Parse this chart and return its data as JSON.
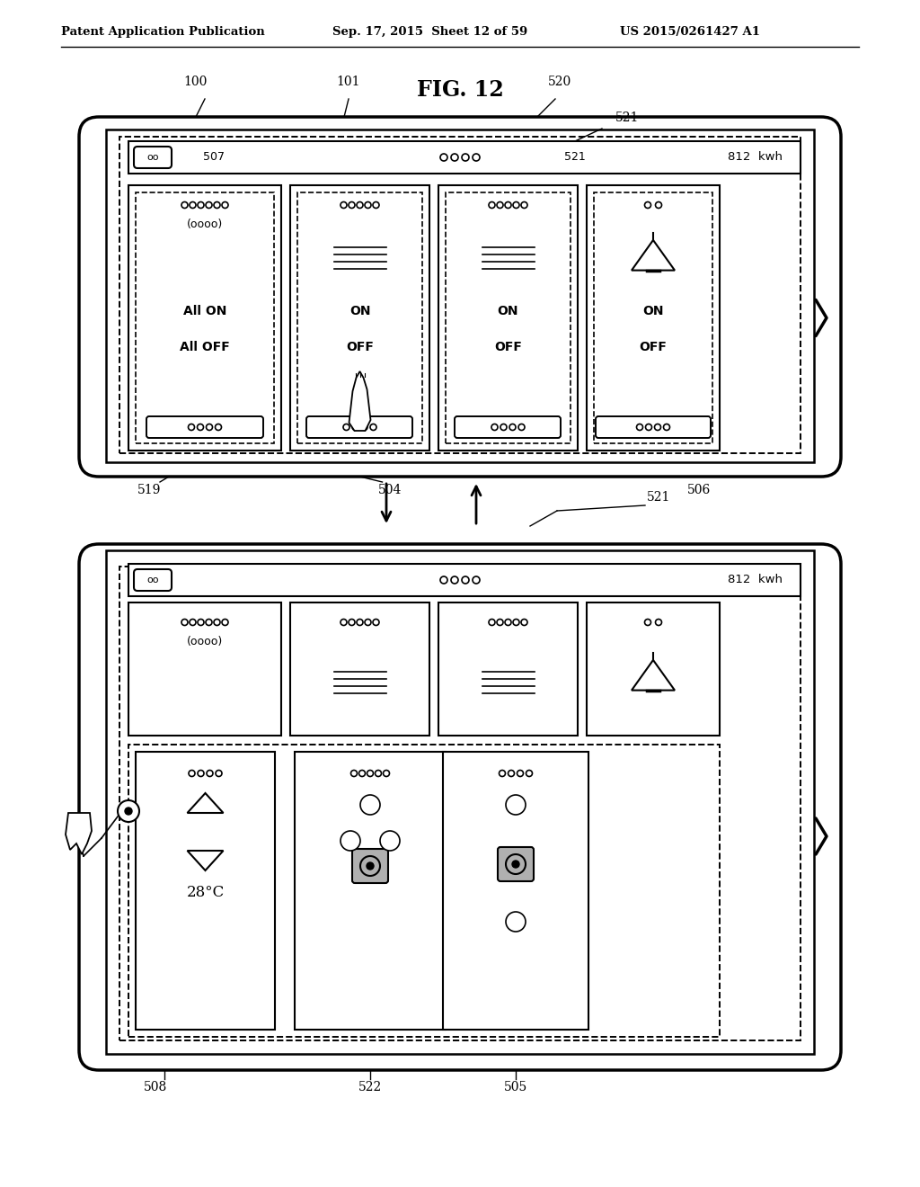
{
  "header_left": "Patent Application Publication",
  "header_mid": "Sep. 17, 2015  Sheet 12 of 59",
  "header_right": "US 2015/0261427 A1",
  "title": "FIG. 12",
  "bg_color": "#ffffff",
  "line_color": "#000000",
  "gray_fill": "#b0b0b0"
}
